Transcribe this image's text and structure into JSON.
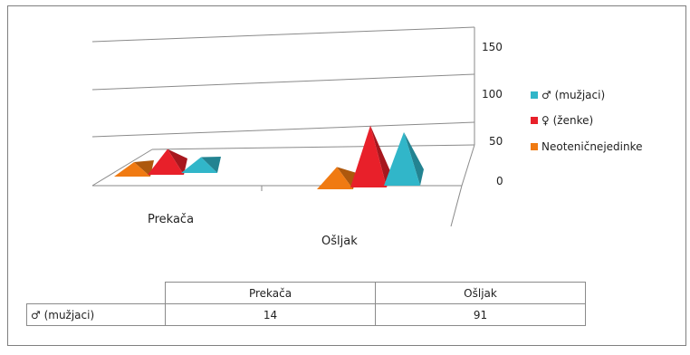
{
  "chart_data": {
    "type": "bar",
    "style": "3d-pyramid",
    "title": "",
    "xlabel": "",
    "ylabel": "",
    "categories": [
      "Prekača",
      "Ošljak"
    ],
    "ylim": [
      0,
      150
    ],
    "yticks": [
      "0",
      "50",
      "100",
      "150"
    ],
    "grid": true,
    "legend_position": "right",
    "series": [
      {
        "name": "♂ (mužjaci)",
        "values": [
          14,
          91
        ],
        "color": "#31b6c9"
      },
      {
        "name": "♀ (ženke)",
        "values": [
          34,
          108
        ],
        "color": "#e8202a"
      },
      {
        "name": "Neoteničnejedinke",
        "values": [
          4,
          27
        ],
        "color": "#f07a12"
      }
    ]
  },
  "table": {
    "headers": [
      "Prekača",
      "Ošljak"
    ],
    "rows": [
      {
        "label": "♂ (mužjaci)",
        "values": [
          "14",
          "91"
        ]
      }
    ]
  }
}
